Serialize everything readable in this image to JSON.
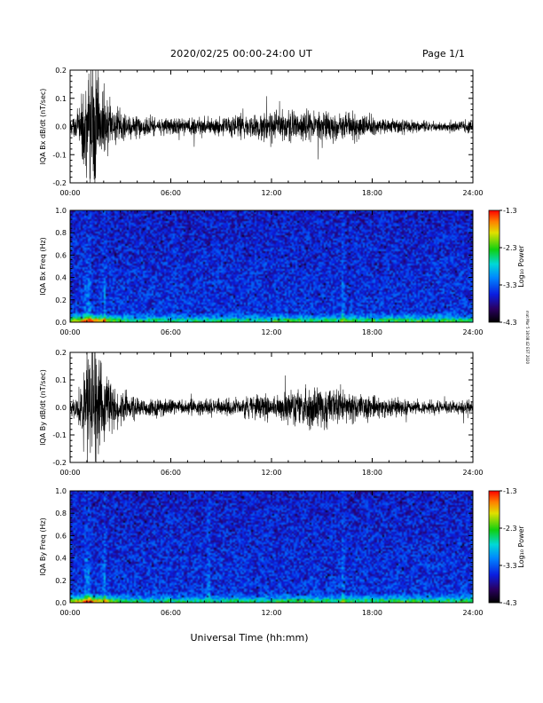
{
  "header": {
    "title": "2020/02/25  00:00-24:00 UT",
    "page": "Page 1/1"
  },
  "credit": "mat Mar 5 18:08:42 EST 2020",
  "xlabel": "Universal Time (hh:mm)",
  "colors": {
    "trace": "#000000",
    "axes": "#000000"
  },
  "chart_data": [
    {
      "type": "line",
      "ylabel": "IQA Bx dB/dt (nT/sec)",
      "xlim": [
        0,
        24
      ],
      "ylim": [
        -0.2,
        0.2
      ],
      "xticks": [
        "00:00",
        "06:00",
        "12:00",
        "18:00",
        "24:00"
      ],
      "yticks": [
        "-0.2",
        "-0.1",
        "0.0",
        "0.1",
        "0.2"
      ],
      "envelope": {
        "x": [
          0,
          0.5,
          0.8,
          1.0,
          1.2,
          1.5,
          1.8,
          2.2,
          2.6,
          3.0,
          3.5,
          4.0,
          5.0,
          6.0,
          7.0,
          8.0,
          9.0,
          10.0,
          11.0,
          12.0,
          13.0,
          14.0,
          15.0,
          16.0,
          17.0,
          18.0,
          19.0,
          20.0,
          21.0,
          22.0,
          23.0,
          24.0
        ],
        "amplitude": [
          0.02,
          0.06,
          0.15,
          0.25,
          0.22,
          0.25,
          0.18,
          0.1,
          0.08,
          0.06,
          0.05,
          0.04,
          0.035,
          0.03,
          0.03,
          0.032,
          0.035,
          0.04,
          0.045,
          0.05,
          0.055,
          0.06,
          0.055,
          0.055,
          0.045,
          0.035,
          0.03,
          0.025,
          0.02,
          0.02,
          0.02,
          0.025
        ]
      }
    },
    {
      "type": "heatmap",
      "ylabel": "IQA Bx Freq (Hz)",
      "xlim": [
        0,
        24
      ],
      "ylim": [
        0,
        1.0
      ],
      "xticks": [
        "00:00",
        "06:00",
        "12:00",
        "18:00",
        "24:00"
      ],
      "yticks": [
        "0.0",
        "0.2",
        "0.4",
        "0.6",
        "0.8",
        "1.0"
      ],
      "colorbar": {
        "label": "Log₁₀ Power",
        "range": [
          -4.3,
          -1.3
        ],
        "ticks": [
          "-1.3",
          "-2.3",
          "-3.3",
          "-4.3"
        ]
      },
      "features": {
        "low_freq_band_hz": 0.05,
        "vertical_streaks_hours": [
          0.9,
          1.1,
          2.0,
          16.2
        ]
      }
    },
    {
      "type": "line",
      "ylabel": "IQA By dB/dt (nT/sec)",
      "xlim": [
        0,
        24
      ],
      "ylim": [
        -0.2,
        0.2
      ],
      "xticks": [
        "00:00",
        "06:00",
        "12:00",
        "18:00",
        "24:00"
      ],
      "yticks": [
        "-0.2",
        "-0.1",
        "0.0",
        "0.1",
        "0.2"
      ],
      "envelope": {
        "x": [
          0,
          0.5,
          0.8,
          1.0,
          1.2,
          1.5,
          1.8,
          2.2,
          2.6,
          3.0,
          3.5,
          4.0,
          5.0,
          6.0,
          7.0,
          8.0,
          9.0,
          10.0,
          11.0,
          12.0,
          13.0,
          14.0,
          15.0,
          16.0,
          17.0,
          18.0,
          19.0,
          20.0,
          21.0,
          22.0,
          23.0,
          24.0
        ],
        "amplitude": [
          0.02,
          0.06,
          0.15,
          0.25,
          0.23,
          0.25,
          0.2,
          0.12,
          0.09,
          0.06,
          0.05,
          0.04,
          0.035,
          0.03,
          0.03,
          0.03,
          0.032,
          0.035,
          0.045,
          0.05,
          0.06,
          0.075,
          0.08,
          0.07,
          0.055,
          0.045,
          0.035,
          0.03,
          0.025,
          0.025,
          0.025,
          0.025
        ]
      }
    },
    {
      "type": "heatmap",
      "ylabel": "IQA By Freq (Hz)",
      "xlim": [
        0,
        24
      ],
      "ylim": [
        0,
        1.0
      ],
      "xticks": [
        "00:00",
        "06:00",
        "12:00",
        "18:00",
        "24:00"
      ],
      "yticks": [
        "0.0",
        "0.2",
        "0.4",
        "0.6",
        "0.8",
        "1.0"
      ],
      "colorbar": {
        "label": "Log₁₀ Power",
        "range": [
          -4.3,
          -1.3
        ],
        "ticks": [
          "-1.3",
          "-2.3",
          "-3.3",
          "-4.3"
        ]
      },
      "features": {
        "low_freq_band_hz": 0.05,
        "vertical_streaks_hours": [
          0.9,
          1.1,
          2.0,
          8.2,
          16.2
        ]
      }
    }
  ]
}
